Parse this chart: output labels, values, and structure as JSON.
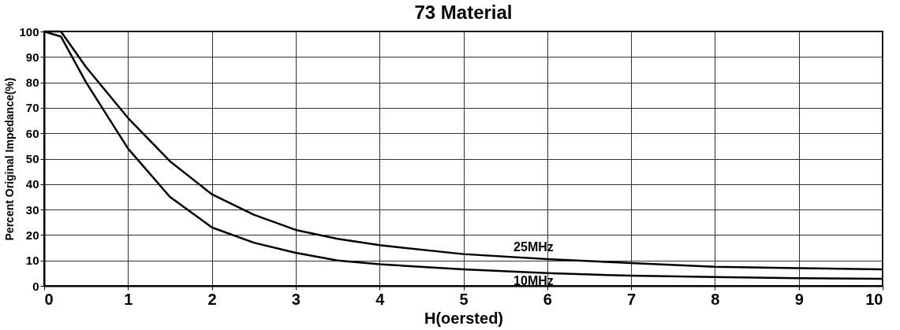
{
  "chart_data": {
    "type": "line",
    "title": "73 Material",
    "xlabel": "H(oersted)",
    "ylabel": "Percent Original Impedance(%)",
    "x": [
      0,
      0.2,
      0.5,
      1,
      1.5,
      2,
      2.5,
      3,
      3.5,
      4,
      5,
      6,
      7,
      8,
      9,
      10
    ],
    "series": [
      {
        "name": "25MHz",
        "color": "#000000",
        "values": [
          100,
          100,
          86,
          66,
          49,
          36,
          28,
          22,
          18.5,
          16,
          12.5,
          10.5,
          9,
          7.5,
          7,
          6.5
        ]
      },
      {
        "name": "10MHz",
        "color": "#000000",
        "values": [
          100,
          98,
          80,
          54,
          35,
          23,
          17,
          13,
          10,
          8.5,
          6.5,
          5,
          4,
          3.5,
          3,
          2.8
        ]
      }
    ],
    "legend": false,
    "xlim": [
      0,
      10
    ],
    "xticks": [
      0,
      1,
      2,
      3,
      4,
      5,
      6,
      7,
      8,
      9,
      10
    ],
    "ylim": [
      0,
      100
    ],
    "yticks": [
      0,
      10,
      20,
      30,
      40,
      50,
      60,
      70,
      80,
      90,
      100
    ],
    "grid": true,
    "marker": "none",
    "line_style": "solid"
  }
}
